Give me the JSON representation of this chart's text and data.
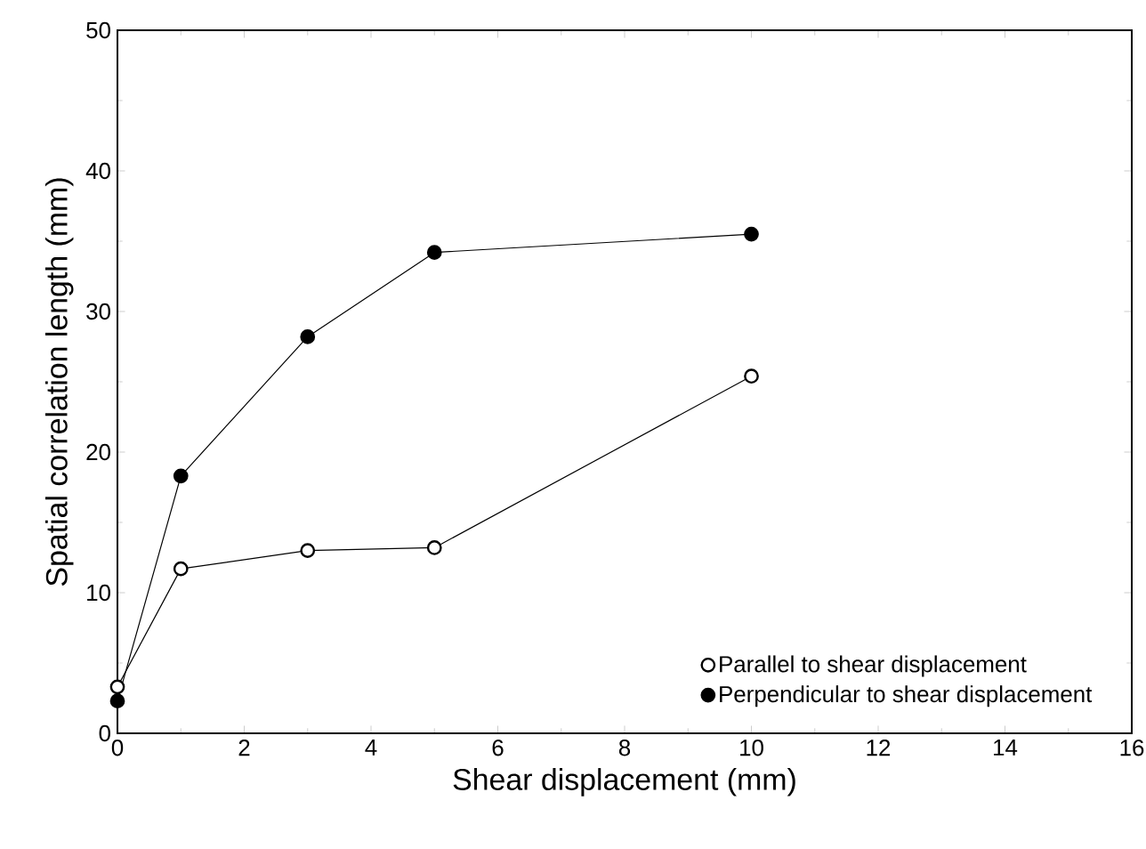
{
  "chart_data": {
    "type": "line",
    "xlabel": "Shear displacement (mm)",
    "ylabel": "Spatial correlation length (mm)",
    "x": [
      0,
      1,
      3,
      5,
      10
    ],
    "series": [
      {
        "name": "Parallel to shear displacement",
        "color": "#ffffff",
        "values": [
          3.3,
          11.7,
          13.0,
          13.2,
          25.4
        ]
      },
      {
        "name": "Perpendicular to shear displacement",
        "color": "#000000",
        "values": [
          2.3,
          18.3,
          28.2,
          34.2,
          35.5
        ]
      }
    ],
    "xlim": [
      0,
      16
    ],
    "xticks": [
      0,
      2,
      4,
      6,
      8,
      10,
      12,
      14,
      16
    ],
    "ylim": [
      0,
      50
    ],
    "yticks": [
      0,
      10,
      20,
      30,
      40,
      50
    ],
    "marker": "circle",
    "line_style": "solid",
    "legend": "bottom right",
    "grid": false
  }
}
